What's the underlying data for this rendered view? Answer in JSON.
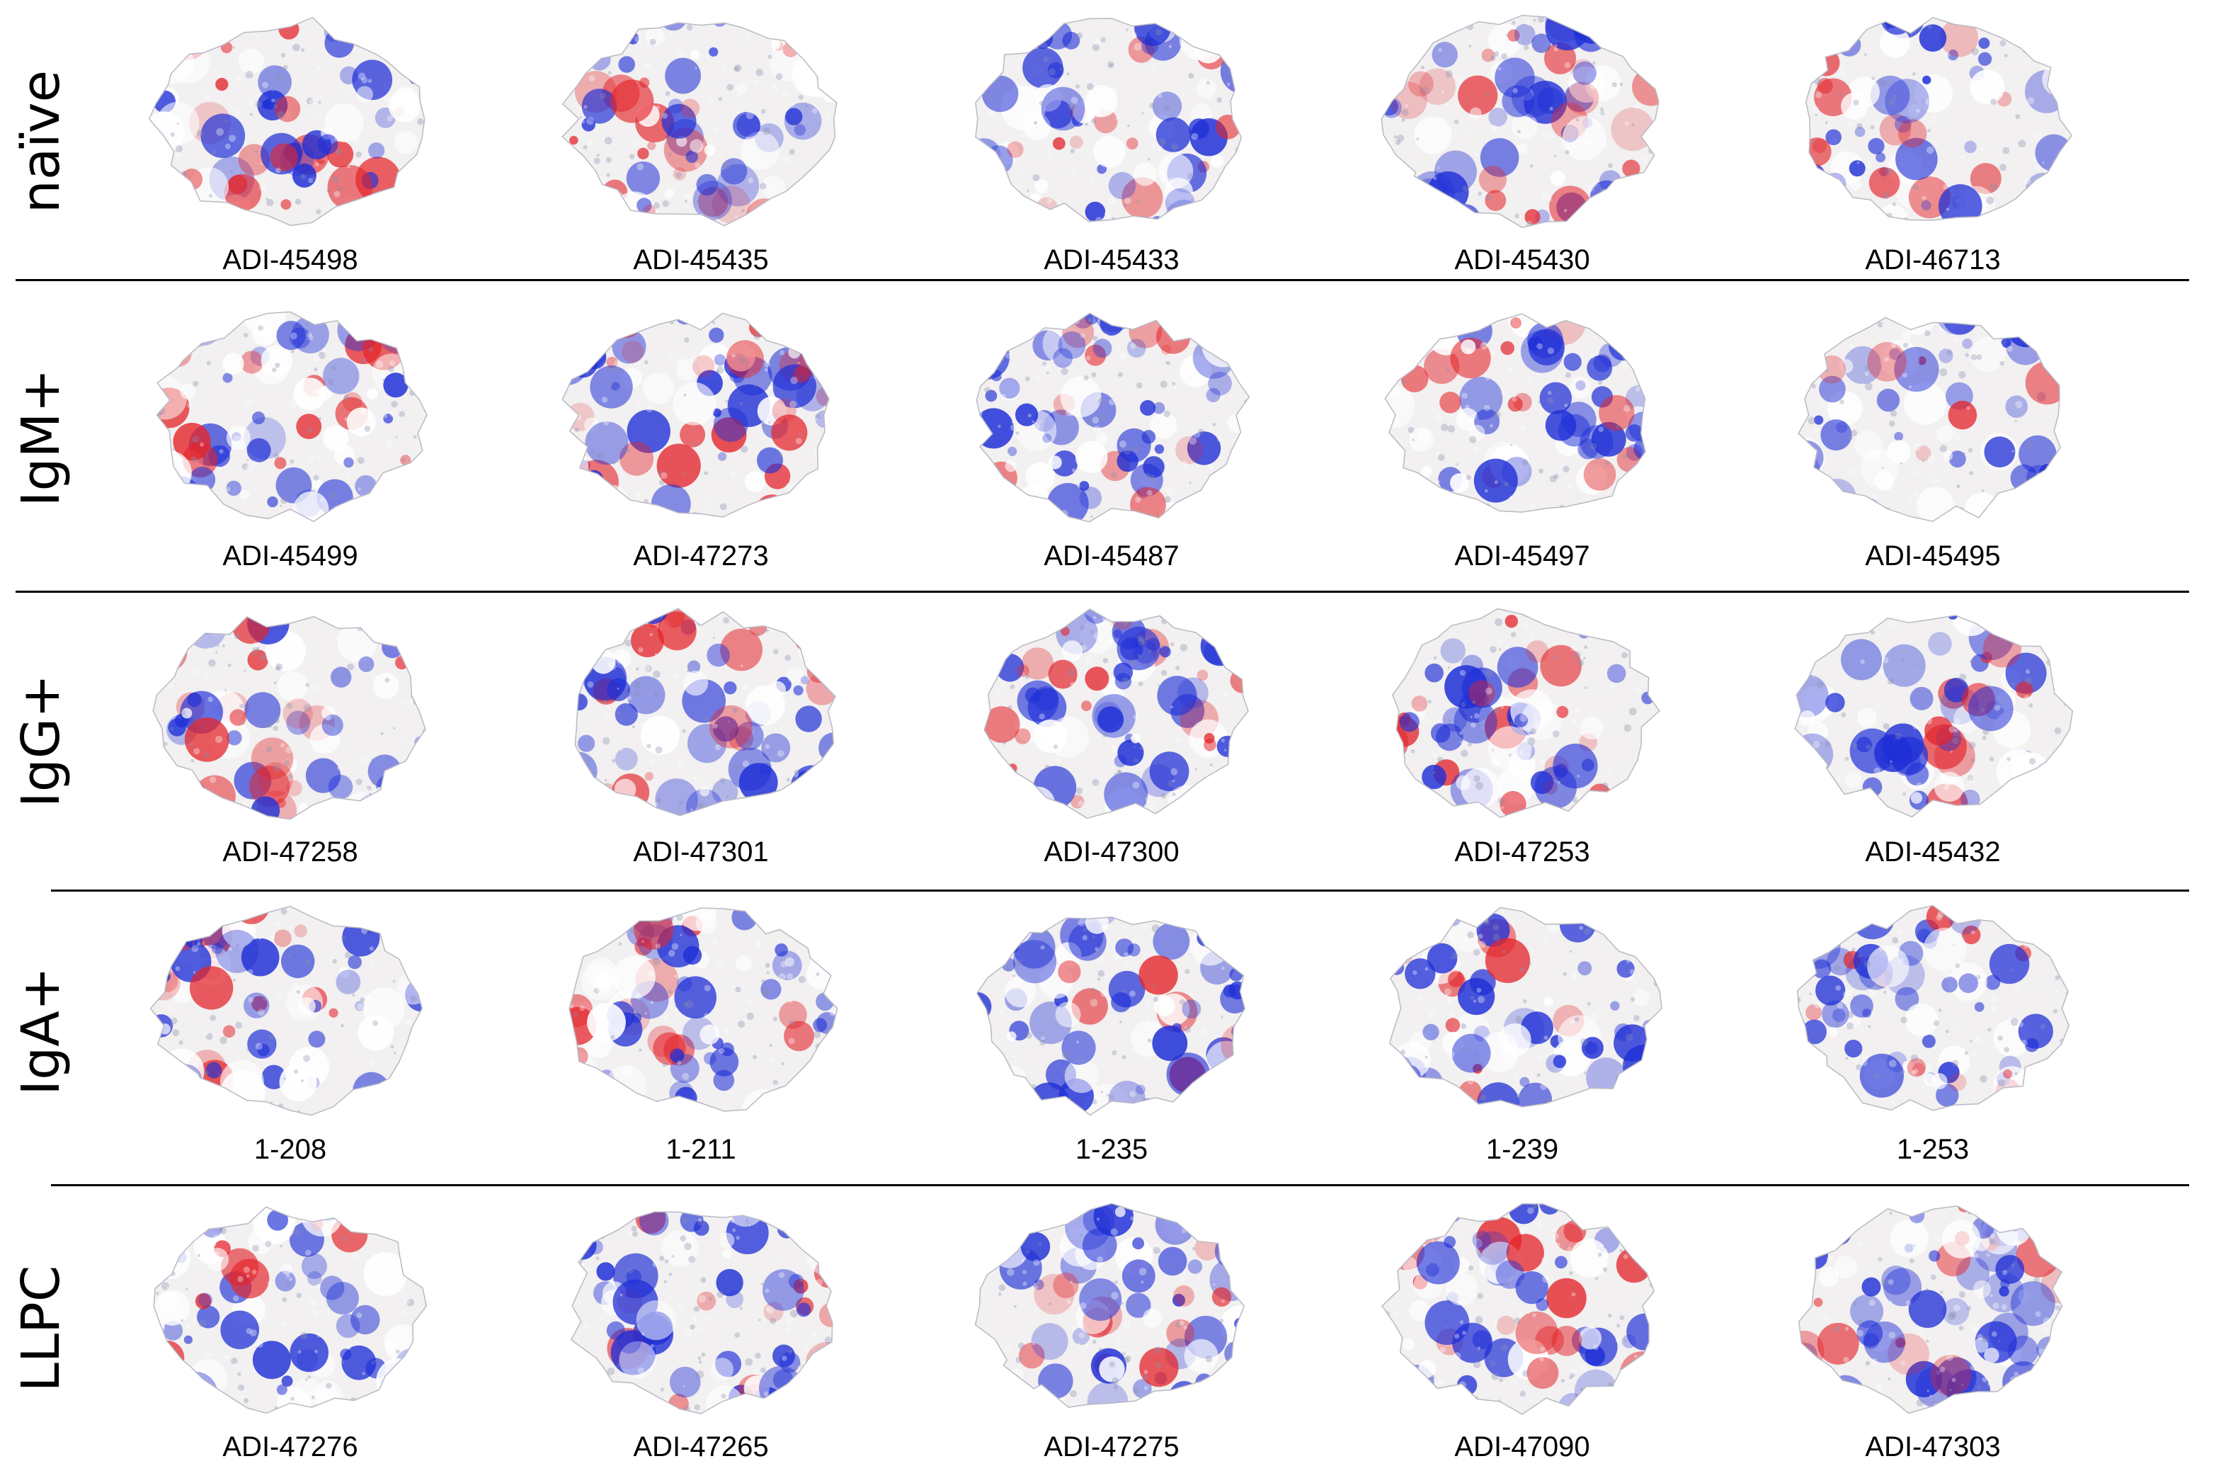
{
  "rows": [
    {
      "label": "naïve",
      "items": [
        "ADI-45498",
        "ADI-45435",
        "ADI-45433",
        "ADI-45430",
        "ADI-46713"
      ]
    },
    {
      "label": "IgM+",
      "items": [
        "ADI-45499",
        "ADI-47273",
        "ADI-45487",
        "ADI-45497",
        "ADI-45495"
      ]
    },
    {
      "label": "IgG+",
      "items": [
        "ADI-47258",
        "ADI-47301",
        "ADI-47300",
        "ADI-47253",
        "ADI-45432"
      ]
    },
    {
      "label": "IgA+",
      "items": [
        "1-208",
        "1-211",
        "1-235",
        "1-239",
        "1-253"
      ]
    },
    {
      "label": "LLPC",
      "items": [
        "ADI-47276",
        "ADI-47265",
        "ADI-47275",
        "ADI-47090",
        "ADI-47303"
      ]
    }
  ],
  "colors": {
    "positive": "#1f2fd6",
    "negative": "#e3252b",
    "neutral": "#f2f0f0"
  }
}
